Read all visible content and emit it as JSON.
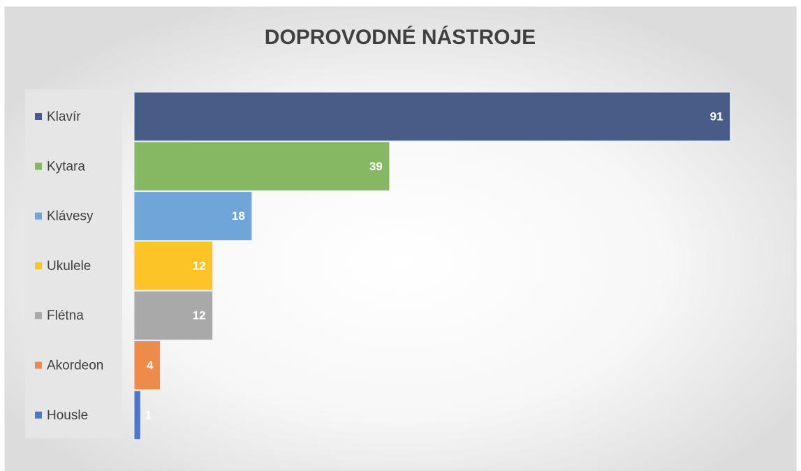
{
  "chart_data": {
    "type": "bar",
    "orientation": "horizontal",
    "title": "DOPROVODNÉ NÁSTROJE",
    "categories": [
      "Klavír",
      "Kytara",
      "Klávesy",
      "Ukulele",
      "Flétna",
      "Akordeon",
      "Housle"
    ],
    "values": [
      91,
      39,
      18,
      12,
      12,
      4,
      1
    ],
    "colors": [
      "#475d87",
      "#86b863",
      "#6fa6da",
      "#fcc427",
      "#a9a9a9",
      "#ee8a4a",
      "#4f76c8"
    ],
    "xlim": [
      0,
      100
    ],
    "legend": "left"
  }
}
